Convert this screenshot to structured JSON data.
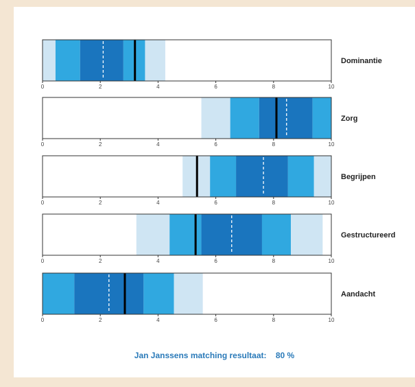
{
  "chart_data": {
    "type": "bar",
    "orientation": "horizontal-range",
    "xlim": [
      0,
      10
    ],
    "ticks": [
      0,
      2,
      4,
      6,
      8,
      10
    ],
    "colors": {
      "light": "#cfe5f3",
      "medium": "#30a8e0",
      "dark": "#1a75be",
      "marker": "#000000",
      "dashed": "#ffffff",
      "border": "#333333"
    },
    "rows": [
      {
        "label": "Dominantie",
        "bands": [
          {
            "from": 0.0,
            "to": 0.45,
            "shade": "light"
          },
          {
            "from": 0.45,
            "to": 1.3,
            "shade": "medium"
          },
          {
            "from": 1.3,
            "to": 2.8,
            "shade": "dark"
          },
          {
            "from": 2.8,
            "to": 3.55,
            "shade": "medium"
          },
          {
            "from": 3.55,
            "to": 4.25,
            "shade": "light"
          }
        ],
        "dashed": 2.1,
        "marker": 3.2
      },
      {
        "label": "Zorg",
        "bands": [
          {
            "from": 5.5,
            "to": 6.5,
            "shade": "light"
          },
          {
            "from": 6.5,
            "to": 7.5,
            "shade": "medium"
          },
          {
            "from": 7.5,
            "to": 9.35,
            "shade": "dark"
          },
          {
            "from": 9.35,
            "to": 10.0,
            "shade": "medium"
          }
        ],
        "dashed": 8.45,
        "marker": 8.1
      },
      {
        "label": "Begrijpen",
        "bands": [
          {
            "from": 4.85,
            "to": 5.8,
            "shade": "light"
          },
          {
            "from": 5.8,
            "to": 6.7,
            "shade": "medium"
          },
          {
            "from": 6.7,
            "to": 8.5,
            "shade": "dark"
          },
          {
            "from": 8.5,
            "to": 9.4,
            "shade": "medium"
          },
          {
            "from": 9.4,
            "to": 10.0,
            "shade": "light"
          }
        ],
        "dashed": 7.65,
        "marker": 5.35
      },
      {
        "label": "Gestructureerd",
        "bands": [
          {
            "from": 3.25,
            "to": 4.4,
            "shade": "light"
          },
          {
            "from": 4.4,
            "to": 5.5,
            "shade": "medium"
          },
          {
            "from": 5.5,
            "to": 7.6,
            "shade": "dark"
          },
          {
            "from": 7.6,
            "to": 8.6,
            "shade": "medium"
          },
          {
            "from": 8.6,
            "to": 9.7,
            "shade": "light"
          }
        ],
        "dashed": 6.55,
        "marker": 5.3
      },
      {
        "label": "Aandacht",
        "bands": [
          {
            "from": 0.0,
            "to": 1.1,
            "shade": "medium"
          },
          {
            "from": 1.1,
            "to": 3.5,
            "shade": "dark"
          },
          {
            "from": 3.5,
            "to": 4.55,
            "shade": "medium"
          },
          {
            "from": 4.55,
            "to": 5.55,
            "shade": "light"
          }
        ],
        "dashed": 2.3,
        "marker": 2.85
      }
    ]
  },
  "result": {
    "label": "Jan Janssens matching resultaat:",
    "value": "80 %"
  }
}
